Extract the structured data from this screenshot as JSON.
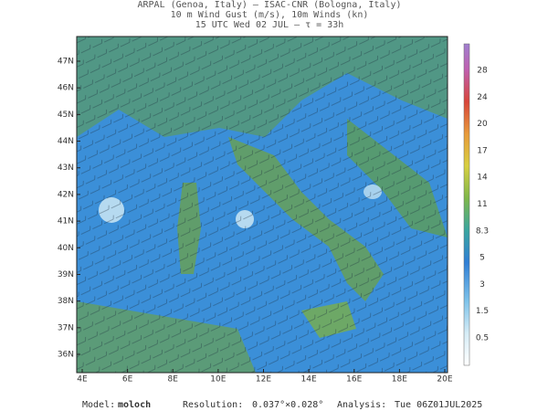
{
  "header": {
    "lines": [
      "ARPAL (Genoa, Italy)  –  ISAC-CNR (Bologna, Italy)",
      "10 m Wind Gust (m/s), 10m Winds (kn)",
      "15 UTC Wed 02 JUL  –  τ = 33h"
    ]
  },
  "map": {
    "lat_labels": [
      "47N",
      "46N",
      "45N",
      "44N",
      "43N",
      "42N",
      "41N",
      "40N",
      "39N",
      "38N",
      "37N",
      "36N"
    ],
    "lon_labels": [
      "4E",
      "6E",
      "8E",
      "10E",
      "12E",
      "14E",
      "16E",
      "18E",
      "20E"
    ]
  },
  "colorbar": {
    "labels": [
      "28",
      "24",
      "20",
      "17",
      "14",
      "11",
      "8.3",
      "5",
      "3",
      "1.5",
      "0.5"
    ]
  },
  "footer": {
    "model_label": "Model:",
    "model": "moloch",
    "resolution_label": "Resolution:",
    "resolution": "0.037°×0.028°",
    "analysis_label": "Analysis:",
    "analysis": "Tue 06Z01JUL2025"
  }
}
